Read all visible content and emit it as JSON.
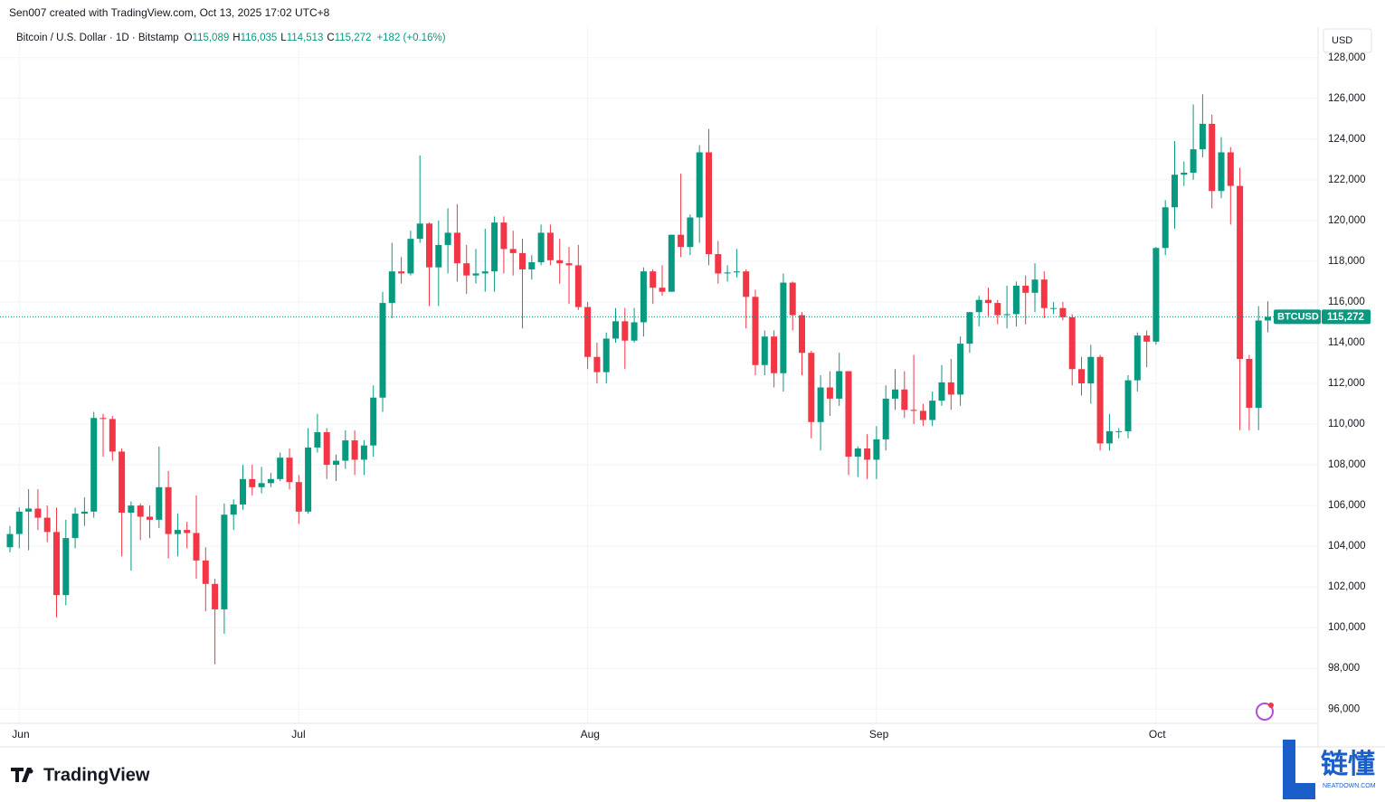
{
  "header": "Sen007 created with TradingView.com, Oct 13, 2025 17:02 UTC+8",
  "branding": {
    "logo": "TradingView",
    "watermark": "链懂",
    "watermark_sub": "NEATDOWN.COM"
  },
  "chart_data": {
    "type": "candlestick",
    "title": "Bitcoin / U.S. Dollar · 1D · Bitstamp",
    "legend": {
      "keys": [
        "O",
        "H",
        "L",
        "C"
      ],
      "values": [
        "115,089",
        "116,035",
        "114,513",
        "115,272"
      ],
      "change": "+182 (+0.16%)"
    },
    "currency": "USD",
    "symbol": "BTCUSD",
    "last_price_label": "115,272",
    "up_color": "#089981",
    "down_color": "#f23645",
    "categories": [
      null,
      "Jun",
      null,
      null,
      null,
      null,
      null,
      null,
      null,
      null,
      null,
      null,
      null,
      null,
      null,
      null,
      null,
      null,
      null,
      null,
      null,
      null,
      null,
      null,
      null,
      null,
      null,
      null,
      null,
      null,
      null,
      "Jul",
      null,
      null,
      null,
      null,
      null,
      null,
      null,
      null,
      null,
      null,
      null,
      null,
      null,
      null,
      null,
      null,
      null,
      null,
      null,
      null,
      null,
      null,
      null,
      null,
      null,
      null,
      null,
      null,
      null,
      null,
      "Aug",
      null,
      null,
      null,
      null,
      null,
      null,
      null,
      null,
      null,
      null,
      null,
      null,
      null,
      null,
      null,
      null,
      null,
      null,
      null,
      null,
      null,
      null,
      null,
      null,
      null,
      null,
      null,
      null,
      null,
      null,
      "Sep",
      null,
      null,
      null,
      null,
      null,
      null,
      null,
      null,
      null,
      null,
      null,
      null,
      null,
      null,
      null,
      null,
      null,
      null,
      null,
      null,
      null,
      null,
      null,
      null,
      null,
      null,
      null,
      null,
      null,
      "Oct",
      null,
      null,
      null,
      null,
      null,
      null,
      null,
      null,
      null,
      null,
      null,
      null
    ],
    "open": [
      103950,
      104600,
      105700,
      105850,
      105400,
      104700,
      101600,
      104400,
      105600,
      105700,
      110300,
      110250,
      108650,
      105650,
      106000,
      105450,
      105300,
      106900,
      104600,
      104800,
      104650,
      103300,
      102150,
      100900,
      105550,
      106050,
      107300,
      106900,
      107100,
      107300,
      108350,
      107150,
      105700,
      108850,
      109600,
      108000,
      108200,
      109200,
      108250,
      108950,
      111300,
      115950,
      117500,
      117400,
      119100,
      119850,
      117700,
      118800,
      119400,
      117900,
      117300,
      117400,
      117500,
      119900,
      118600,
      118400,
      117600,
      117950,
      119400,
      118050,
      117900,
      117800,
      115750,
      113300,
      112550,
      114200,
      115050,
      114100,
      115000,
      117500,
      116700,
      116500,
      119300,
      118700,
      120150,
      123350,
      118350,
      117400,
      117450,
      117500,
      116250,
      112900,
      114300,
      112500,
      116950,
      115350,
      113500,
      110100,
      111800,
      111250,
      112600,
      108400,
      108800,
      108250,
      109250,
      111250,
      111700,
      110700,
      110650,
      110200,
      111150,
      112050,
      111450,
      113950,
      115500,
      116100,
      115950,
      115350,
      115400,
      116800,
      116450,
      117100,
      115700,
      115700,
      115250,
      112700,
      112000,
      113300,
      109050,
      109650,
      109650,
      112150,
      114350,
      114050,
      118650,
      120650,
      122250,
      122350,
      123500,
      124750,
      121450,
      123350,
      121700,
      113200,
      110800,
      115089
    ],
    "high": [
      105000,
      105900,
      106800,
      106800,
      106000,
      105900,
      105300,
      105900,
      106400,
      110600,
      110500,
      110400,
      108800,
      106200,
      106100,
      106000,
      108900,
      107700,
      105600,
      105200,
      106500,
      103950,
      102400,
      106100,
      106300,
      108000,
      108000,
      107900,
      107600,
      108600,
      108800,
      107500,
      109800,
      110500,
      109800,
      108500,
      109700,
      109700,
      109200,
      111900,
      116500,
      118900,
      118200,
      119500,
      123200,
      119900,
      120000,
      120600,
      120800,
      118800,
      118600,
      119600,
      120200,
      120200,
      119500,
      119100,
      118300,
      119800,
      119800,
      119100,
      118700,
      118800,
      116000,
      114000,
      114500,
      115700,
      115700,
      115700,
      117700,
      117600,
      117800,
      119300,
      122300,
      120300,
      123700,
      124500,
      119000,
      117800,
      118600,
      117600,
      116600,
      114600,
      114600,
      117400,
      117000,
      115500,
      113600,
      112400,
      112600,
      113500,
      112600,
      108900,
      109500,
      109900,
      111900,
      112700,
      112600,
      113400,
      111000,
      111600,
      112900,
      113200,
      114300,
      115500,
      116300,
      116700,
      116100,
      116800,
      117000,
      117300,
      117900,
      117500,
      116000,
      116000,
      115400,
      113300,
      113900,
      113400,
      110500,
      109800,
      112400,
      114500,
      114600,
      118700,
      121000,
      123900,
      122900,
      125700,
      126200,
      125200,
      124100,
      123600,
      122600,
      113400,
      115800,
      116035
    ],
    "low": [
      103700,
      103900,
      103800,
      104800,
      104200,
      100500,
      101100,
      103900,
      105000,
      105400,
      108400,
      108200,
      103500,
      102800,
      104300,
      104400,
      104900,
      103400,
      103500,
      103900,
      102400,
      100800,
      98200,
      99700,
      104800,
      105800,
      106500,
      106600,
      106900,
      107200,
      106800,
      105100,
      105600,
      108600,
      107300,
      107200,
      107800,
      107500,
      107500,
      108400,
      110600,
      115200,
      116900,
      117300,
      118900,
      115800,
      115800,
      117400,
      117000,
      116400,
      116900,
      116500,
      116500,
      117400,
      117300,
      114700,
      117100,
      117800,
      117800,
      116900,
      115900,
      115600,
      112700,
      112000,
      112000,
      114000,
      112700,
      114000,
      114300,
      115900,
      116300,
      116500,
      118200,
      118300,
      118900,
      117800,
      116900,
      117000,
      117200,
      114700,
      112400,
      112400,
      111800,
      111600,
      114600,
      112400,
      109300,
      108700,
      110400,
      110900,
      107500,
      107400,
      107300,
      107300,
      108700,
      110700,
      110300,
      110000,
      109900,
      109900,
      110900,
      110700,
      110900,
      113500,
      114800,
      115300,
      114900,
      114700,
      114800,
      114900,
      115500,
      115200,
      115400,
      115100,
      111900,
      111400,
      111000,
      108700,
      108700,
      109300,
      109300,
      111600,
      112800,
      113900,
      118300,
      119600,
      121700,
      122000,
      123100,
      120600,
      121100,
      119800,
      109700,
      109700,
      109700,
      114513
    ],
    "close": [
      104600,
      105700,
      105850,
      105400,
      104700,
      101600,
      104400,
      105600,
      105700,
      110300,
      110250,
      108650,
      105650,
      106000,
      105450,
      105300,
      106900,
      104600,
      104800,
      104650,
      103300,
      102150,
      100900,
      105550,
      106050,
      107300,
      106900,
      107100,
      107300,
      108350,
      107150,
      105700,
      108850,
      109600,
      108000,
      108200,
      109200,
      108250,
      108950,
      111300,
      115950,
      117500,
      117400,
      119100,
      119850,
      117700,
      118800,
      119400,
      117900,
      117300,
      117400,
      117500,
      119900,
      118600,
      118400,
      117600,
      117950,
      119400,
      118050,
      117900,
      117800,
      115750,
      113300,
      112550,
      114200,
      115050,
      114100,
      115000,
      117500,
      116700,
      116500,
      119300,
      118700,
      120150,
      123350,
      118350,
      117400,
      117450,
      117500,
      116250,
      112900,
      114300,
      112500,
      116950,
      115350,
      113500,
      110100,
      111800,
      111250,
      112600,
      108400,
      108800,
      108250,
      109250,
      111250,
      111700,
      110700,
      110650,
      110200,
      111150,
      112050,
      111450,
      113950,
      115500,
      116100,
      115950,
      115350,
      115400,
      116800,
      116450,
      117100,
      115700,
      115700,
      115250,
      112700,
      112000,
      113300,
      109050,
      109650,
      109650,
      112150,
      114350,
      114050,
      118650,
      120650,
      122250,
      122350,
      123500,
      124750,
      121450,
      123350,
      121700,
      113200,
      110800,
      115089,
      115272
    ],
    "ylim": [
      95300,
      129500
    ],
    "yticks": [
      {
        "value": 96000,
        "label": "96,000"
      },
      {
        "value": 98000,
        "label": "98,000"
      },
      {
        "value": 100000,
        "label": "100,000"
      },
      {
        "value": 102000,
        "label": "102,000"
      },
      {
        "value": 104000,
        "label": "104,000"
      },
      {
        "value": 106000,
        "label": "106,000"
      },
      {
        "value": 108000,
        "label": "108,000"
      },
      {
        "value": 110000,
        "label": "110,000"
      },
      {
        "value": 112000,
        "label": "112,000"
      },
      {
        "value": 114000,
        "label": "114,000"
      },
      {
        "value": 116000,
        "label": "116,000"
      },
      {
        "value": 118000,
        "label": "118,000"
      },
      {
        "value": 120000,
        "label": "120,000"
      },
      {
        "value": 122000,
        "label": "122,000"
      },
      {
        "value": 124000,
        "label": "124,000"
      },
      {
        "value": 126000,
        "label": "126,000"
      },
      {
        "value": 128000,
        "label": "128,000"
      }
    ],
    "grid": true
  }
}
